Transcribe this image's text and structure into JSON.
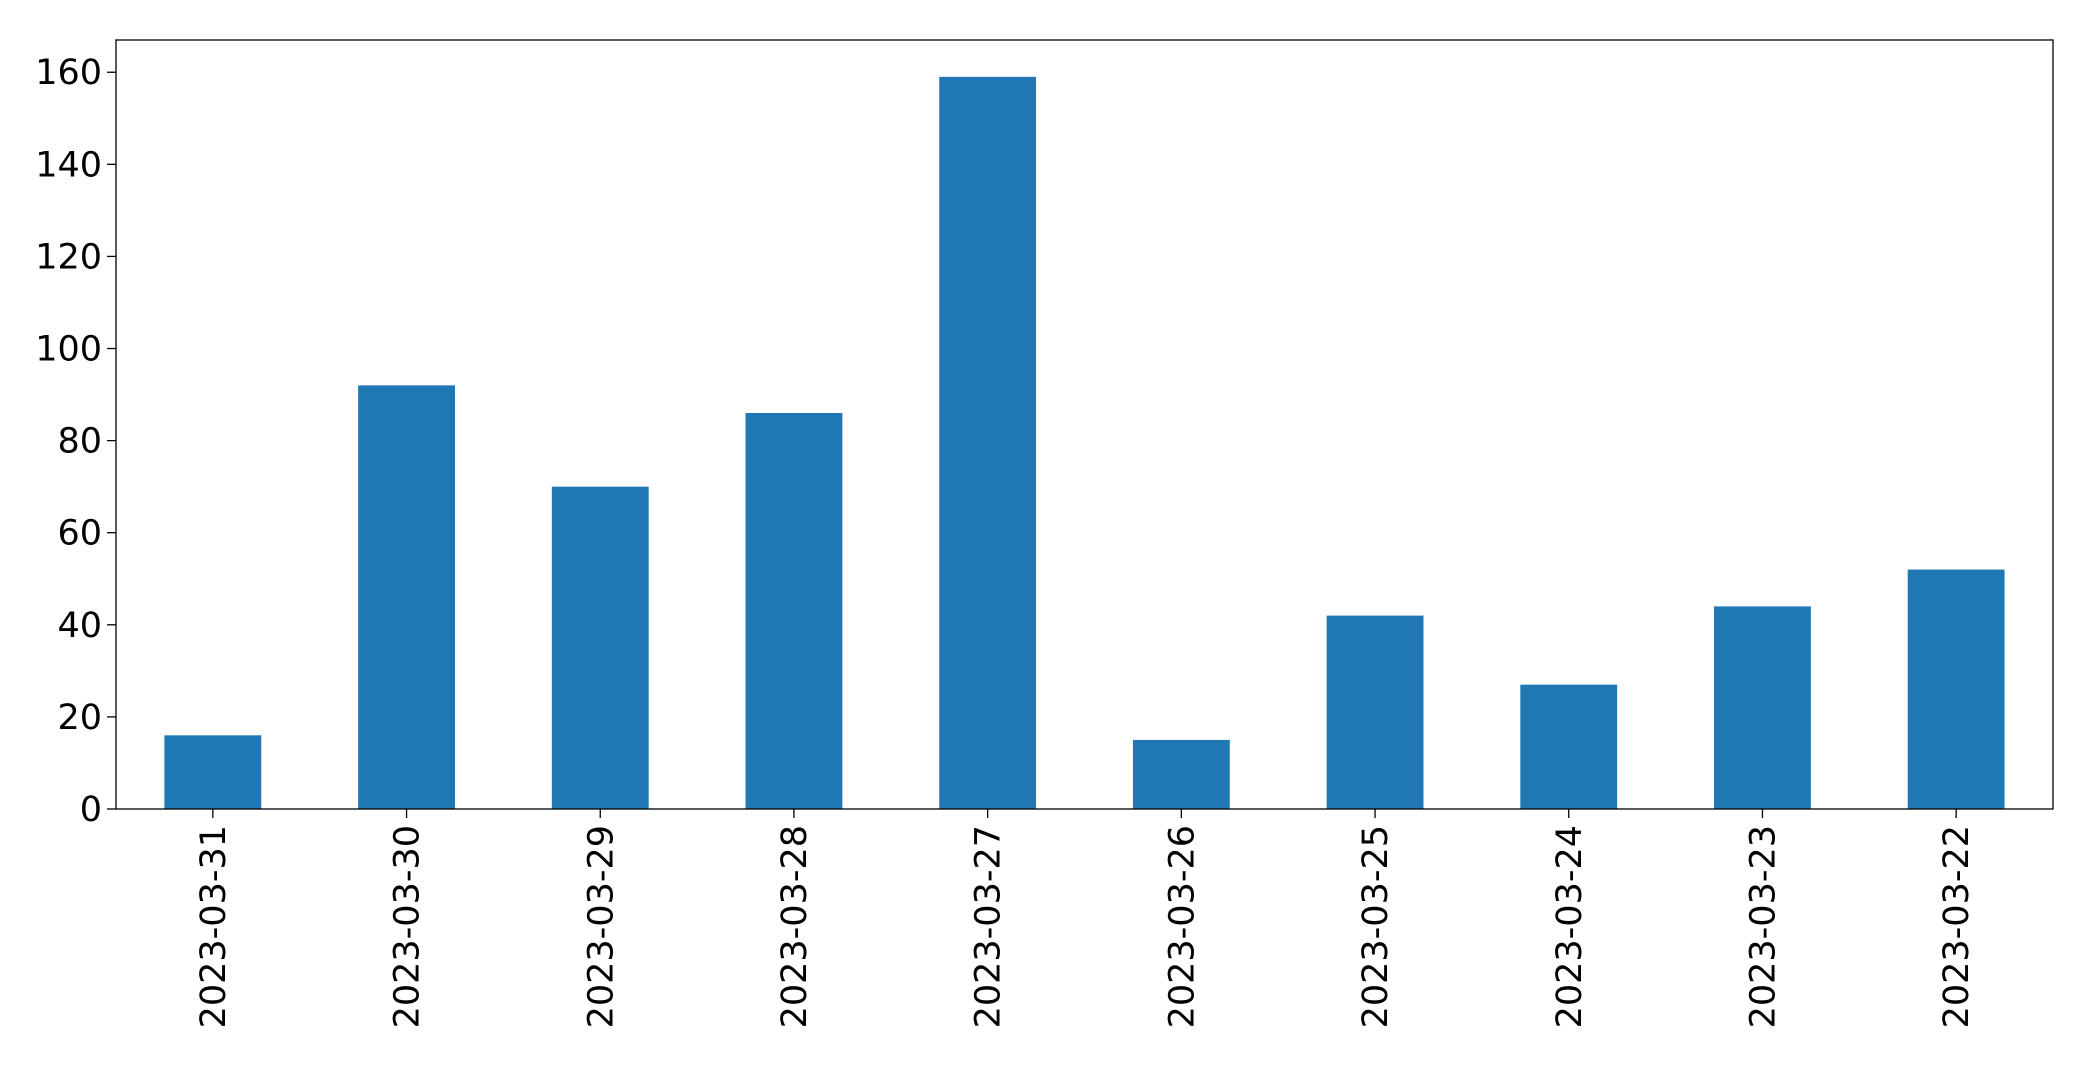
{
  "chart_data": {
    "type": "bar",
    "categories": [
      "2023-03-31",
      "2023-03-30",
      "2023-03-29",
      "2023-03-28",
      "2023-03-27",
      "2023-03-26",
      "2023-03-25",
      "2023-03-24",
      "2023-03-23",
      "2023-03-22"
    ],
    "values": [
      16,
      92,
      70,
      86,
      159,
      15,
      42,
      27,
      44,
      52
    ],
    "color": "#1f77b4",
    "ylim": [
      0,
      167
    ],
    "yticks": [
      0,
      20,
      40,
      60,
      80,
      100,
      120,
      140,
      160
    ],
    "grid": false
  }
}
